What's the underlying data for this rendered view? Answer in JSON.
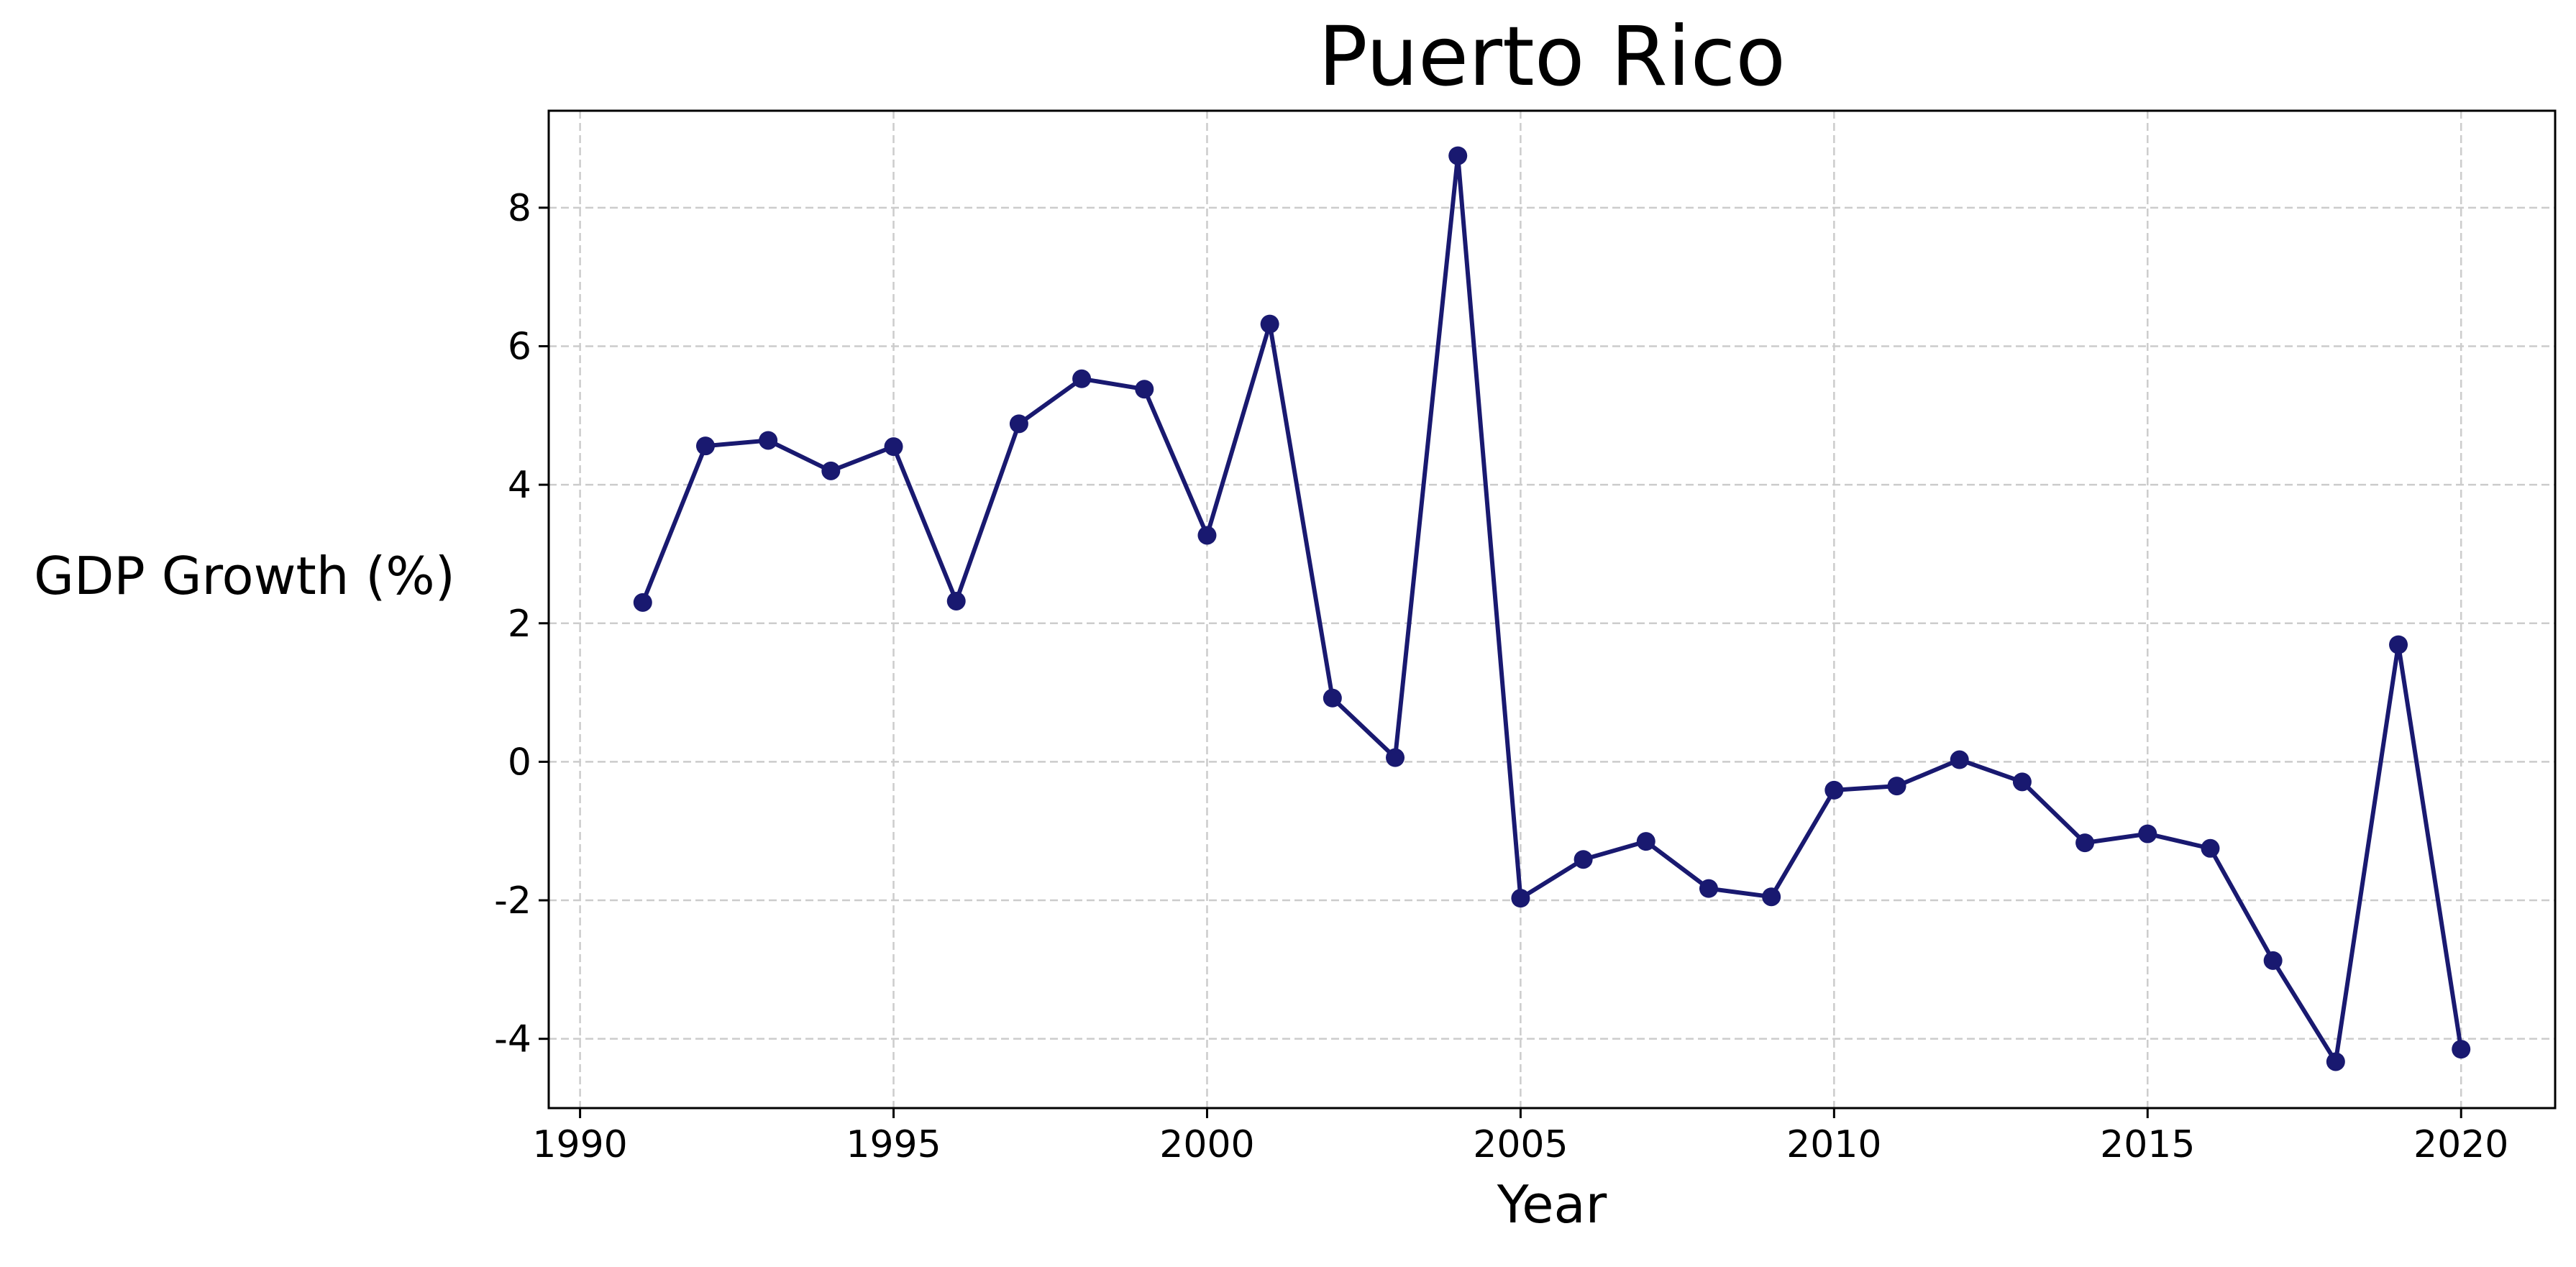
{
  "chart_data": {
    "type": "line",
    "title": "Puerto Rico",
    "xlabel": "Year",
    "ylabel": "GDP Growth (%)",
    "xlim": [
      1989.5,
      2021.5
    ],
    "ylim": [
      -5,
      9.4
    ],
    "xticks": [
      1990,
      1995,
      2000,
      2005,
      2010,
      2015,
      2020
    ],
    "yticks": [
      -4,
      -2,
      0,
      2,
      4,
      6,
      8
    ],
    "grid": true,
    "legend": "none",
    "series": [
      {
        "color": "#191970",
        "marker": "circle",
        "x": [
          1991,
          1992,
          1993,
          1994,
          1995,
          1996,
          1997,
          1998,
          1999,
          2000,
          2001,
          2002,
          2003,
          2004,
          2005,
          2006,
          2007,
          2008,
          2009,
          2010,
          2011,
          2012,
          2013,
          2014,
          2015,
          2016,
          2017,
          2018,
          2019,
          2020
        ],
        "y": [
          2.3,
          4.56,
          4.64,
          4.2,
          4.55,
          2.32,
          4.88,
          5.53,
          5.38,
          3.27,
          6.32,
          0.92,
          0.06,
          8.75,
          -1.97,
          -1.41,
          -1.15,
          -1.83,
          -1.95,
          -0.41,
          -0.35,
          0.03,
          -0.29,
          -1.17,
          -1.04,
          -1.25,
          -2.87,
          -4.33,
          1.69,
          -4.15
        ]
      }
    ]
  }
}
